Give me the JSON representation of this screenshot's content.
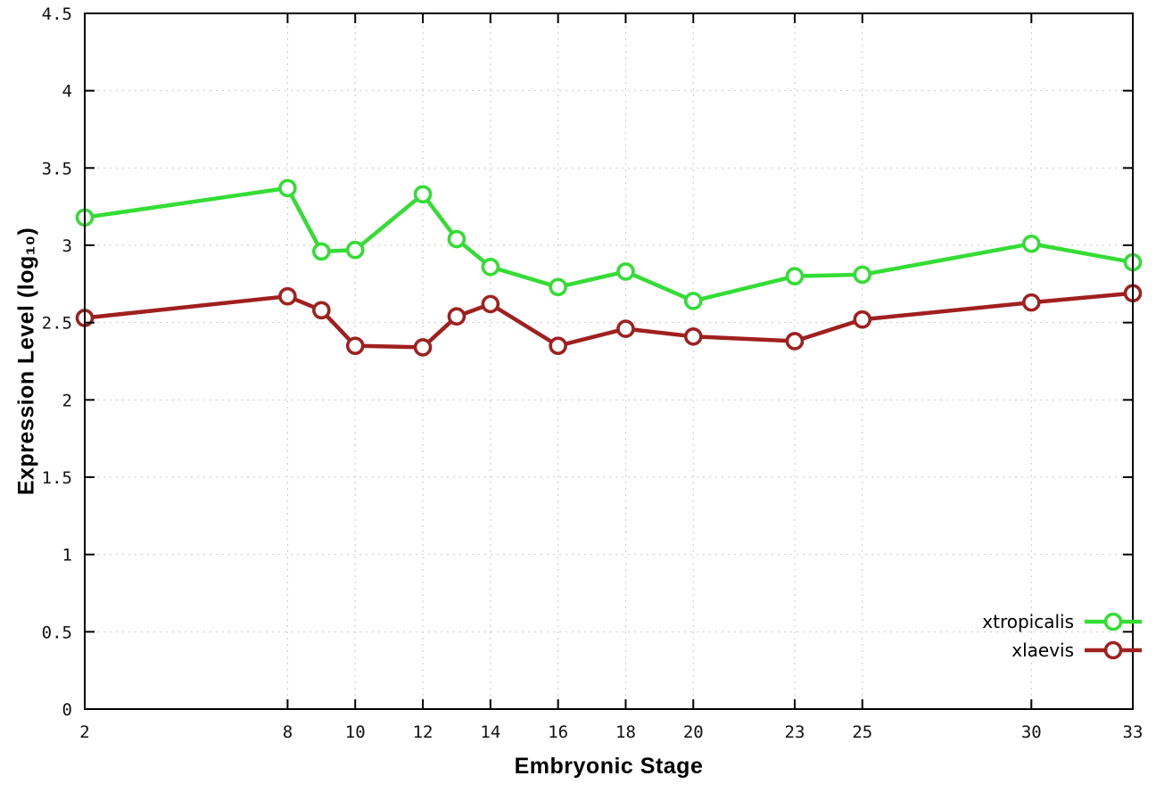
{
  "chart_data": {
    "type": "line",
    "title": "",
    "xlabel": "Embryonic Stage",
    "ylabel": "Expression Level (log₁₀)",
    "xlim": [
      2,
      33
    ],
    "ylim": [
      0,
      4.5
    ],
    "xticks": [
      2,
      8,
      10,
      12,
      14,
      16,
      18,
      20,
      23,
      25,
      30,
      33
    ],
    "yticks": [
      0,
      0.5,
      1,
      1.5,
      2,
      2.5,
      3,
      3.5,
      4,
      4.5
    ],
    "grid": true,
    "grid_color": "#c9c9c9",
    "border_color": "#000000",
    "background": "#ffffff",
    "legend_position": "bottom-right",
    "x": [
      2,
      8,
      9,
      10,
      12,
      13,
      14,
      16,
      18,
      20,
      23,
      25,
      30,
      33
    ],
    "series": [
      {
        "name": "xtropicalis",
        "color": "#33dd33",
        "values": [
          3.18,
          3.37,
          2.96,
          2.97,
          3.33,
          3.04,
          2.86,
          2.73,
          2.83,
          2.64,
          2.8,
          2.81,
          3.01,
          2.89
        ]
      },
      {
        "name": "xlaevis",
        "color": "#a02020",
        "values": [
          2.53,
          2.67,
          2.58,
          2.35,
          2.34,
          2.54,
          2.62,
          2.35,
          2.46,
          2.41,
          2.38,
          2.52,
          2.63,
          2.69
        ]
      }
    ]
  }
}
